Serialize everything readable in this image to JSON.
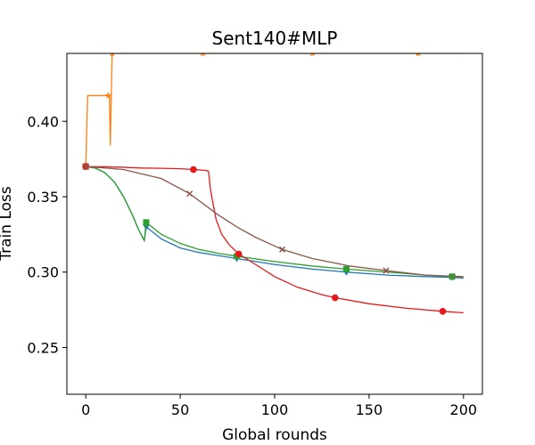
{
  "chart_data": {
    "type": "line",
    "title": "Sent140#MLP",
    "x_label": "Global rounds",
    "y_label": "Train Loss",
    "xlim": [
      -10,
      210
    ],
    "ylim": [
      0.219,
      0.445
    ],
    "xticks": [
      0,
      50,
      100,
      150,
      200
    ],
    "yticks": [
      0.25,
      {
        "value": 0.3,
        "label": "0.30"
      },
      0.35,
      {
        "value": 0.4,
        "label": "0.40"
      }
    ],
    "series": [
      {
        "color": "#1f77b4",
        "marker": "triangle-down",
        "x": [
          0,
          5,
          10,
          15,
          20,
          25,
          28,
          31,
          32,
          40,
          50,
          60,
          70,
          80,
          100,
          120,
          138,
          160,
          180,
          194,
          200
        ],
        "values": [
          0.37,
          0.369,
          0.366,
          0.36,
          0.35,
          0.337,
          0.328,
          0.321,
          0.33,
          0.322,
          0.316,
          0.313,
          0.311,
          0.309,
          0.305,
          0.302,
          0.3,
          0.298,
          0.297,
          0.2965,
          0.296
        ],
        "marker_indices": [
          0,
          8,
          13,
          16,
          19
        ]
      },
      {
        "color": "#ff7f0e",
        "marker": "star",
        "x": [
          0,
          1,
          12,
          12.5,
          13,
          13.5,
          14,
          62,
          120,
          176,
          200
        ],
        "values": [
          0.371,
          0.417,
          0.417,
          0.417,
          0.384,
          0.417,
          0.445,
          0.445,
          0.445,
          0.445,
          0.445
        ],
        "marker_indices": [
          0,
          2,
          6,
          7,
          8,
          9
        ]
      },
      {
        "color": "#2ca02c",
        "marker": "square",
        "x": [
          0,
          5,
          10,
          15,
          20,
          25,
          28,
          31,
          32,
          40,
          50,
          60,
          70,
          80,
          100,
          120,
          138,
          160,
          180,
          194,
          200
        ],
        "values": [
          0.37,
          0.369,
          0.366,
          0.36,
          0.35,
          0.337,
          0.328,
          0.321,
          0.333,
          0.325,
          0.319,
          0.315,
          0.3125,
          0.3105,
          0.307,
          0.304,
          0.302,
          0.3,
          0.298,
          0.297,
          0.297
        ],
        "marker_indices": [
          0,
          8,
          13,
          16,
          19
        ]
      },
      {
        "color": "#e41a1c",
        "marker": "circle",
        "x": [
          0,
          10,
          20,
          30,
          40,
          50,
          57,
          63,
          65,
          66,
          67,
          69,
          72,
          76,
          81,
          90,
          100,
          112,
          125,
          132,
          150,
          170,
          189,
          200
        ],
        "values": [
          0.37,
          0.3698,
          0.3695,
          0.369,
          0.3688,
          0.3685,
          0.368,
          0.3675,
          0.367,
          0.355,
          0.348,
          0.335,
          0.325,
          0.318,
          0.312,
          0.305,
          0.297,
          0.29,
          0.285,
          0.283,
          0.279,
          0.276,
          0.274,
          0.273
        ],
        "marker_indices": [
          0,
          6,
          14,
          19,
          22
        ]
      },
      {
        "color": "#8c564b",
        "marker": "x",
        "x": [
          0,
          20,
          40,
          55,
          70,
          80,
          90,
          104,
          120,
          140,
          159,
          180,
          200
        ],
        "values": [
          0.37,
          0.368,
          0.362,
          0.352,
          0.338,
          0.33,
          0.323,
          0.315,
          0.309,
          0.304,
          0.301,
          0.298,
          0.297
        ],
        "marker_indices": [
          0,
          3,
          7,
          10
        ]
      }
    ]
  }
}
